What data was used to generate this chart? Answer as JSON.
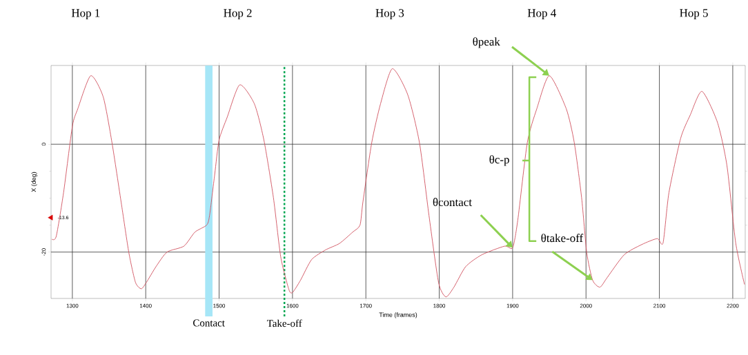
{
  "chart_data": {
    "type": "line",
    "xlabel": "Time (frames)",
    "ylabel": "X (deg)",
    "xlim": [
      1271,
      2217
    ],
    "ylim": [
      -28.6,
      14.6
    ],
    "xticks": [
      1300,
      1400,
      1500,
      1600,
      1700,
      1800,
      1900,
      2000,
      2100,
      2200
    ],
    "yticks": [
      -20,
      0
    ],
    "grid": true,
    "marker": "none",
    "line_style": "solid",
    "series": [
      {
        "color": "#d0505e",
        "x": [
          1272,
          1278,
          1288,
          1300,
          1307.5,
          1325,
          1342,
          1354,
          1367,
          1377,
          1386,
          1394,
          1401,
          1414,
          1429,
          1452,
          1467,
          1483,
          1487,
          1494,
          1500,
          1511,
          1528,
          1548,
          1561,
          1574,
          1584,
          1595,
          1600,
          1611,
          1626,
          1645,
          1664,
          1682,
          1692,
          1696,
          1708,
          1720,
          1736,
          1757,
          1773,
          1786,
          1799,
          1809,
          1820,
          1836,
          1858,
          1889,
          1900,
          1907,
          1920,
          1933,
          1950,
          1973,
          1984,
          1994,
          2001,
          2009,
          2019,
          2029,
          2052,
          2076,
          2097,
          2105,
          2113,
          2129,
          2142,
          2158,
          2179,
          2192,
          2204,
          2216
        ],
        "values": [
          -17.6,
          -17.1,
          -9.0,
          3.3,
          6.6,
          12.7,
          8.8,
          0.3,
          -11.2,
          -20.1,
          -25.6,
          -26.8,
          -25.6,
          -22.7,
          -20.0,
          -18.9,
          -16.3,
          -15.0,
          -13.2,
          -5.6,
          0.8,
          5.0,
          11.0,
          7.5,
          0.8,
          -9.9,
          -20.9,
          -26.9,
          -27.5,
          -25.2,
          -21.4,
          -19.6,
          -18.4,
          -16.3,
          -15.0,
          -10.7,
          0.3,
          7.5,
          14.0,
          9.2,
          0.3,
          -13.2,
          -25.6,
          -28.3,
          -26.5,
          -22.7,
          -20.5,
          -18.9,
          -19.2,
          -14.1,
          0.3,
          6.6,
          12.7,
          6.6,
          0.3,
          -9.9,
          -20.1,
          -25.2,
          -26.5,
          -24.7,
          -20.5,
          -18.6,
          -17.5,
          -18.3,
          -9.0,
          1.1,
          5.4,
          9.8,
          4.1,
          -3.9,
          -18.3,
          -26.0
        ]
      },
      {
        "type": "scatter",
        "color": "#d90000",
        "marker": "triangle",
        "x": [
          1271
        ],
        "values": [
          -13.6
        ],
        "value_labels": [
          "-13.6"
        ]
      }
    ],
    "ref_lines": [
      {
        "axis": "x",
        "value": 1589,
        "label": "Take-off",
        "color": "#00a651",
        "line_style": "dotted"
      }
    ],
    "bands": [
      {
        "axis": "x",
        "from": 1481,
        "to": 1491,
        "label": "Contact",
        "color": "#a6e6f7"
      }
    ],
    "annotations": [
      "Hop 1",
      "Hop 2",
      "Hop 3",
      "Hop 4",
      "Hop 5",
      {
        "text": "θpeak",
        "x": 1950,
        "y": 12.7
      },
      "θc-p",
      {
        "text": "θcontact",
        "x": 1900,
        "y": -19.2
      },
      {
        "text": "θtake-off",
        "x": 2009,
        "y": -25.2
      }
    ]
  }
}
